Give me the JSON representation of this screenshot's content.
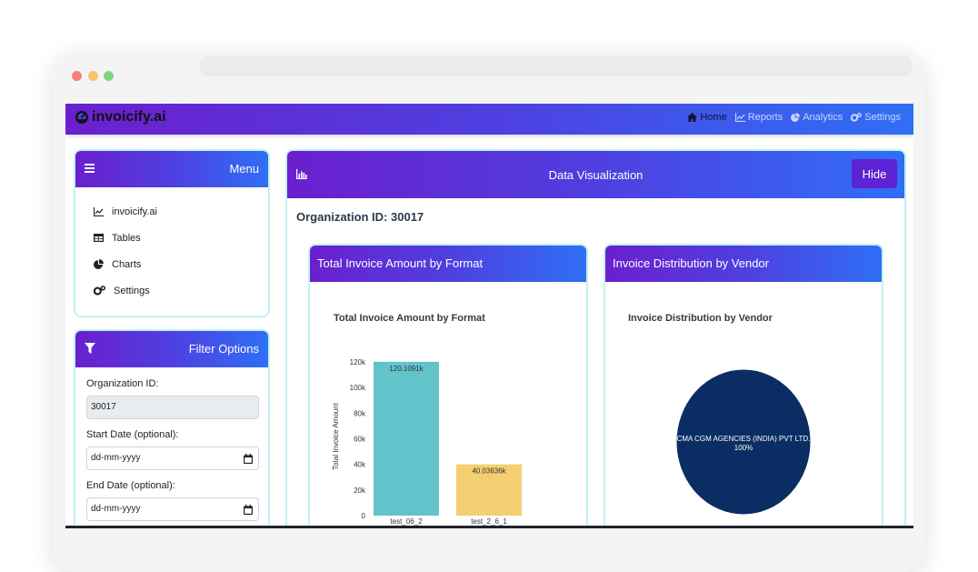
{
  "app": {
    "brand": "invoicify.ai",
    "nav": [
      {
        "label": "Home",
        "icon": "home-icon",
        "active": true
      },
      {
        "label": "Reports",
        "icon": "line-chart-icon",
        "active": false
      },
      {
        "label": "Analytics",
        "icon": "pie-chart-icon",
        "active": false
      },
      {
        "label": "Settings",
        "icon": "gears-icon",
        "active": false
      }
    ]
  },
  "sidebar": {
    "menu_title": "Menu",
    "items": [
      {
        "label": "invoicify.ai",
        "icon": "line-chart-icon"
      },
      {
        "label": "Tables",
        "icon": "table-icon"
      },
      {
        "label": "Charts",
        "icon": "pie-chart-icon"
      },
      {
        "label": "Settings",
        "icon": "gears-icon"
      }
    ]
  },
  "filter": {
    "title": "Filter Options",
    "org_label": "Organization ID:",
    "org_value": "30017",
    "start_label": "Start Date (optional):",
    "start_placeholder": "dd-mm-yyyy",
    "end_label": "End Date (optional):",
    "end_placeholder": "dd-mm-yyyy"
  },
  "main": {
    "title": "Data Visualization",
    "hide_label": "Hide",
    "org_heading": "Organization ID: 30017",
    "cards": [
      {
        "header": "Total Invoice Amount by Format",
        "chart_title": "Total Invoice Amount by Format"
      },
      {
        "header": "Invoice Distribution by Vendor",
        "chart_title": "Invoice Distribution by Vendor"
      }
    ]
  },
  "colors": {
    "gradient_start": "#6b1fce",
    "gradient_end": "#2f6ff5",
    "bar_1": "#62c3ca",
    "bar_2": "#f4cf72",
    "pie_1": "#0a2e63"
  },
  "chart_data": [
    {
      "type": "bar",
      "title": "Total Invoice Amount by Format",
      "ylabel": "Total Invoice Amount",
      "xlabel": "",
      "categories": [
        "test_06_2",
        "test_2_6_1"
      ],
      "values": [
        120109.1,
        40036.36
      ],
      "data_labels": [
        "120.1091k",
        "40.03636k"
      ],
      "yticks": [
        "0",
        "20k",
        "40k",
        "60k",
        "80k",
        "100k",
        "120k"
      ],
      "ytick_values": [
        0,
        20000,
        40000,
        60000,
        80000,
        100000,
        120000
      ],
      "ylim": [
        0,
        120000
      ],
      "grid": false
    },
    {
      "type": "pie",
      "title": "Invoice Distribution by Vendor",
      "slices": [
        {
          "label": "CMA CGM AGENCIES (INDIA) PVT LTD.",
          "percent_label": "100%",
          "value": 100
        }
      ]
    }
  ]
}
